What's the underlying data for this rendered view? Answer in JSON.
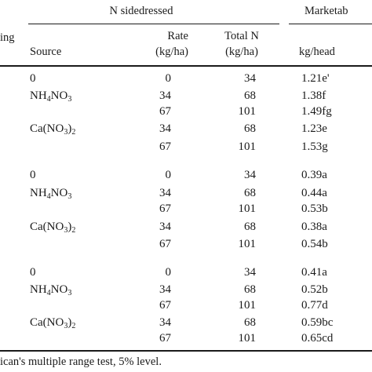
{
  "header": {
    "group_n_sidedressed": "N sidedressed",
    "group_marketable": "Marketab",
    "col_spacing": "ing",
    "col_source": "Source",
    "col_rate": "Rate",
    "col_rate_unit": "(kg/ha)",
    "col_totaln": "Total N",
    "col_totaln_unit": "(kg/ha)",
    "col_kghead": "kg/head"
  },
  "rows": [
    {
      "source_text": "0",
      "rate": "0",
      "total": "34",
      "kg": "1.21e'"
    },
    {
      "source_main": "NH",
      "source_sub1": "4",
      "source_mid": "NO",
      "source_sub2": "3",
      "source_tail": "",
      "rate": "34",
      "total": "68",
      "kg": "1.38f"
    },
    {
      "rate": "67",
      "total": "101",
      "kg": "1.49fg"
    },
    {
      "source_main": "Ca(NO",
      "source_sub1": "3",
      "source_mid": ")",
      "source_sub2": "2",
      "source_tail": "",
      "rate": "34",
      "total": "68",
      "kg": "1.23e"
    },
    {
      "rate": "67",
      "total": "101",
      "kg": "1.53g"
    },
    {
      "source_text": "0",
      "rate": "0",
      "total": "34",
      "kg": "0.39a"
    },
    {
      "source_main": "NH",
      "source_sub1": "4",
      "source_mid": "NO",
      "source_sub2": "3",
      "source_tail": "",
      "rate": "34",
      "total": "68",
      "kg": "0.44a"
    },
    {
      "rate": "67",
      "total": "101",
      "kg": "0.53b"
    },
    {
      "source_main": "Ca(NO",
      "source_sub1": "3",
      "source_mid": ")",
      "source_sub2": "2",
      "source_tail": "",
      "rate": "34",
      "total": "68",
      "kg": "0.38a"
    },
    {
      "rate": "67",
      "total": "101",
      "kg": "0.54b"
    },
    {
      "source_text": "0",
      "rate": "0",
      "total": "34",
      "kg": "0.41a"
    },
    {
      "source_main": "NH",
      "source_sub1": "4",
      "source_mid": "NO",
      "source_sub2": "3",
      "source_tail": "",
      "rate": "34",
      "total": "68",
      "kg": "0.52b"
    },
    {
      "rate": "67",
      "total": "101",
      "kg": "0.77d"
    },
    {
      "source_main": "Ca(NO",
      "source_sub1": "3",
      "source_mid": ")",
      "source_sub2": "2",
      "source_tail": "",
      "rate": "34",
      "total": "68",
      "kg": "0.59bc"
    },
    {
      "rate": "67",
      "total": "101",
      "kg": "0.65cd"
    }
  ],
  "footnote": "ican's multiple range test, 5% level."
}
